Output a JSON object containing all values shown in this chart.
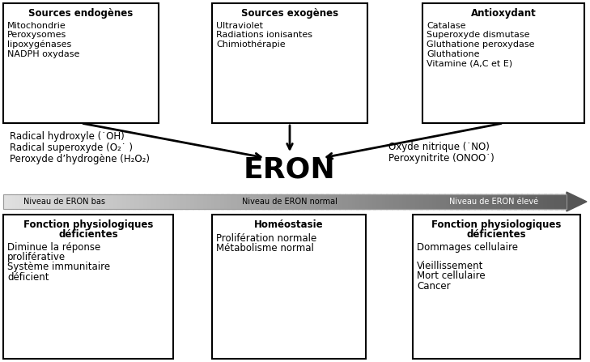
{
  "bg_color": "#ffffff",
  "box_top_left": {
    "title": "Sources endogènes",
    "lines": [
      "Mitochondrie",
      "Peroxysomes",
      "lipoxygénases",
      "NADPH oxydase"
    ]
  },
  "box_top_mid": {
    "title": "Sources exogènes",
    "lines": [
      "Ultraviolet",
      "Radiations ionisantes",
      "Chimiothérapie"
    ]
  },
  "box_top_right": {
    "title": "Antioxydant",
    "lines": [
      "Catalase",
      "Superoxyde dismutase",
      "Gluthatione peroxydase",
      "Gluthatione",
      "Vitamine (A,C et E)"
    ]
  },
  "box_bot_left": {
    "title": "Fonction physiologiques\ndéficientes",
    "lines": [
      "Diminue la réponse",
      "proliférative",
      "Système immunitaire",
      "déficient"
    ]
  },
  "box_bot_mid": {
    "title": "Homéostasie",
    "lines": [
      "Prolifération normale",
      "Métabolisme normal"
    ]
  },
  "box_bot_right": {
    "title": "Fonction physiologiques\ndéficientes",
    "lines": [
      "Dommages cellulaire",
      "",
      "Vieillissement",
      "Mort cellulaire",
      "Cancer"
    ]
  },
  "eron_text": "ERON",
  "left_radicals": [
    "Radical hydroxyle (˙OH)",
    "Radical superoxyde (O₂˙ )",
    "Peroxyde d’hydrogène (H₂O₂)"
  ],
  "right_radicals": [
    "Oxyde nitrique (˙NO)",
    "Peroxynitrite (ONOO˙)"
  ],
  "gradient_label_left": "Niveau de ERON bas",
  "gradient_label_mid": "Niveau de ERON normal",
  "gradient_label_right": "Niveau de ERON élevé"
}
